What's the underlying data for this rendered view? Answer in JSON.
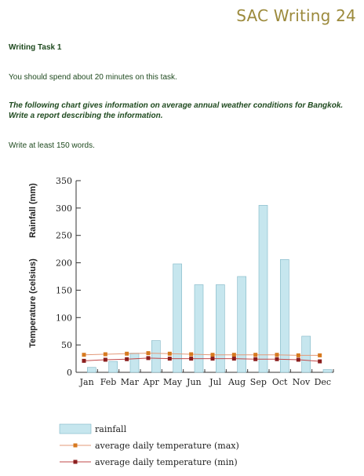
{
  "page": {
    "header": "SAC Writing 24",
    "task_heading": "Writing Task 1",
    "time_instruction": "You should spend about 20 minutes on this task.",
    "prompt": "The following chart gives information on average annual weather conditions for Bangkok.  Write a report describing the information.",
    "word_count": "Write at least 150 words."
  },
  "chart_data": {
    "type": "bar",
    "categories": [
      "Jan",
      "Feb",
      "Mar",
      "Apr",
      "May",
      "Jun",
      "Jul",
      "Aug",
      "Sep",
      "Oct",
      "Nov",
      "Dec"
    ],
    "ylabel_rainfall": "Rainfall (mm)",
    "ylabel_temperature": "Temperature (celsius)",
    "ylim": [
      0,
      350
    ],
    "yticks": [
      0,
      50,
      100,
      150,
      200,
      250,
      300,
      350
    ],
    "series": [
      {
        "name": "rainfall",
        "kind": "bar",
        "values": [
          9,
          20,
          35,
          58,
          198,
          160,
          160,
          175,
          305,
          206,
          66,
          5
        ]
      },
      {
        "name": "average daily temperature (max)",
        "kind": "line",
        "values": [
          32,
          33,
          34,
          35,
          34,
          33,
          32,
          32,
          32,
          32,
          31,
          31
        ]
      },
      {
        "name": "average daily temperature (min)",
        "kind": "line",
        "values": [
          21,
          23,
          24,
          26,
          25,
          25,
          25,
          25,
          24,
          24,
          23,
          20
        ]
      }
    ],
    "colors": {
      "bar_fill": "#c6e6ee",
      "bar_stroke": "#7fb6c6",
      "max_line": "#e39a7a",
      "max_marker": "#d77a1f",
      "min_line": "#c24a4a",
      "min_marker": "#8b1e1e"
    },
    "legend": [
      "rainfall",
      "average daily temperature (max)",
      "average daily temperature (min)"
    ]
  }
}
